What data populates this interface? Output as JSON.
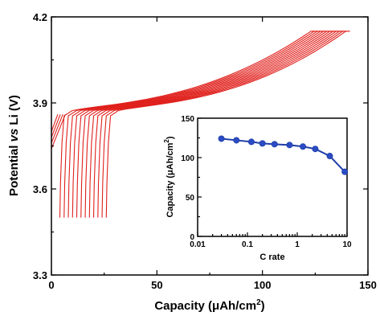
{
  "chart_data": [
    {
      "type": "line",
      "xlabel_main": "Capacity (",
      "xlabel_unit": "μAh/cm",
      "xlabel_sup": "2",
      "xlabel_end": ")",
      "ylabel_pre": "Potential ",
      "ylabel_italic": "vs",
      "ylabel_post": " Li (V)",
      "xlim": [
        0,
        150
      ],
      "ylim": [
        3.3,
        4.2
      ],
      "xticks": [
        "0",
        "50",
        "100",
        "150"
      ],
      "yticks": [
        "3.3",
        "3.6",
        "3.9",
        "4.2"
      ],
      "curve_count": 12,
      "series_color": "#e0201c",
      "series": [
        {
          "min_capacity": 4.0,
          "plateau_start": 6.0,
          "end_capacity": 123
        },
        {
          "min_capacity": 6.0,
          "plateau_start": 8.0,
          "end_capacity": 124.5
        },
        {
          "min_capacity": 8.0,
          "plateau_start": 10.0,
          "end_capacity": 126
        },
        {
          "min_capacity": 10.0,
          "plateau_start": 12.0,
          "end_capacity": 127.5
        },
        {
          "min_capacity": 12.0,
          "plateau_start": 14.0,
          "end_capacity": 129
        },
        {
          "min_capacity": 14.0,
          "plateau_start": 16.0,
          "end_capacity": 130.5
        },
        {
          "min_capacity": 16.0,
          "plateau_start": 18.0,
          "end_capacity": 132
        },
        {
          "min_capacity": 18.0,
          "plateau_start": 20.0,
          "end_capacity": 133.5
        },
        {
          "min_capacity": 20.0,
          "plateau_start": 22.0,
          "end_capacity": 135
        },
        {
          "min_capacity": 22.0,
          "plateau_start": 24.0,
          "end_capacity": 136.5
        },
        {
          "min_capacity": 24.0,
          "plateau_start": 26.0,
          "end_capacity": 138
        },
        {
          "min_capacity": 26.0,
          "plateau_start": 28.0,
          "end_capacity": 139.5
        }
      ]
    },
    {
      "type": "line",
      "scale_x": "log",
      "xlabel": "C rate",
      "ylabel_main": "Capacity (",
      "ylabel_unit": "μAh/cm",
      "ylabel_sup": "2",
      "ylabel_end": ")",
      "xlim": [
        0.01,
        10
      ],
      "ylim": [
        0,
        150
      ],
      "xticks": [
        "0.01",
        "0.1",
        "1",
        "10"
      ],
      "yticks": [
        "0",
        "50",
        "100",
        "150"
      ],
      "series_color": "#1f3fa8",
      "x": [
        0.03,
        0.06,
        0.12,
        0.2,
        0.35,
        0.7,
        1.3,
        2.3,
        4.5,
        9
      ],
      "values": [
        124,
        122,
        120,
        118,
        117,
        116,
        114,
        111,
        102,
        82
      ]
    }
  ]
}
